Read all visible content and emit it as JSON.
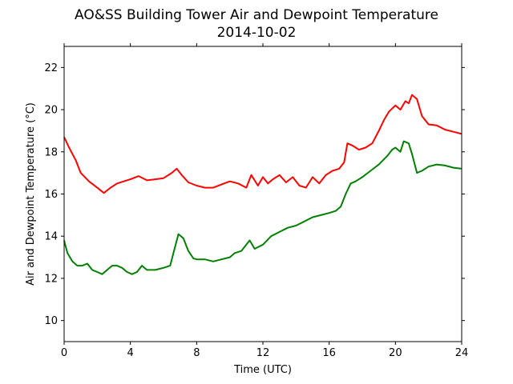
{
  "chart_data": {
    "type": "line",
    "title": "AO&SS Building Tower Air and Dewpoint Temperature",
    "subtitle": "2014-10-02",
    "xlabel": "Time (UTC)",
    "ylabel": "Air and Dewpoint Temperature (°C)",
    "xlim": [
      0,
      24
    ],
    "ylim": [
      9,
      23
    ],
    "xticks": [
      "0",
      "4",
      "8",
      "12",
      "16",
      "20",
      "24"
    ],
    "yticks": [
      "10",
      "12",
      "14",
      "16",
      "18",
      "20",
      "22"
    ],
    "grid": false,
    "legend": "none",
    "series": [
      {
        "color": "#ff0000",
        "x": [
          0,
          0.3,
          0.7,
          1.0,
          1.5,
          2.0,
          2.4,
          2.8,
          3.2,
          3.6,
          4.0,
          4.5,
          5.0,
          5.5,
          6.0,
          6.5,
          6.8,
          7.1,
          7.5,
          8.0,
          8.5,
          9.0,
          9.5,
          10.0,
          10.5,
          11.0,
          11.3,
          11.7,
          12.0,
          12.3,
          12.6,
          13.0,
          13.4,
          13.8,
          14.2,
          14.6,
          15.0,
          15.4,
          15.8,
          16.2,
          16.6,
          16.9,
          17.1,
          17.4,
          17.8,
          18.2,
          18.6,
          19.0,
          19.3,
          19.6,
          20.0,
          20.3,
          20.6,
          20.8,
          21.0,
          21.3,
          21.6,
          22.0,
          22.5,
          23.0,
          23.5,
          24.0
        ],
        "y": [
          18.7,
          18.2,
          17.6,
          17.0,
          16.6,
          16.3,
          16.05,
          16.3,
          16.5,
          16.6,
          16.7,
          16.85,
          16.65,
          16.7,
          16.75,
          17.0,
          17.2,
          16.9,
          16.55,
          16.4,
          16.3,
          16.3,
          16.45,
          16.6,
          16.5,
          16.3,
          16.9,
          16.4,
          16.8,
          16.5,
          16.7,
          16.9,
          16.55,
          16.8,
          16.4,
          16.3,
          16.8,
          16.5,
          16.9,
          17.1,
          17.2,
          17.5,
          18.4,
          18.3,
          18.1,
          18.2,
          18.4,
          19.0,
          19.5,
          19.9,
          20.2,
          20.0,
          20.4,
          20.3,
          20.7,
          20.5,
          19.7,
          19.3,
          19.25,
          19.05,
          18.95,
          18.85
        ]
      },
      {
        "color": "#008000",
        "x": [
          0,
          0.2,
          0.5,
          0.8,
          1.1,
          1.4,
          1.7,
          2.0,
          2.3,
          2.6,
          2.9,
          3.2,
          3.5,
          3.8,
          4.1,
          4.4,
          4.7,
          5.0,
          5.5,
          6.0,
          6.4,
          6.6,
          6.9,
          7.2,
          7.5,
          7.8,
          8.0,
          8.5,
          9.0,
          9.5,
          10.0,
          10.3,
          10.7,
          11.0,
          11.2,
          11.5,
          12.0,
          12.5,
          13.0,
          13.5,
          14.0,
          14.5,
          15.0,
          15.5,
          16.0,
          16.4,
          16.7,
          17.0,
          17.3,
          17.6,
          18.0,
          18.5,
          19.0,
          19.5,
          19.8,
          20.0,
          20.3,
          20.5,
          20.8,
          21.0,
          21.3,
          21.6,
          22.0,
          22.5,
          23.0,
          23.5,
          24.0
        ],
        "y": [
          13.8,
          13.2,
          12.8,
          12.6,
          12.6,
          12.7,
          12.4,
          12.3,
          12.2,
          12.4,
          12.6,
          12.6,
          12.5,
          12.3,
          12.2,
          12.3,
          12.6,
          12.4,
          12.4,
          12.5,
          12.6,
          13.2,
          14.1,
          13.9,
          13.3,
          12.95,
          12.9,
          12.9,
          12.8,
          12.9,
          13.0,
          13.2,
          13.3,
          13.6,
          13.8,
          13.4,
          13.6,
          14.0,
          14.2,
          14.4,
          14.5,
          14.7,
          14.9,
          15.0,
          15.1,
          15.2,
          15.4,
          16.0,
          16.5,
          16.6,
          16.8,
          17.1,
          17.4,
          17.8,
          18.1,
          18.2,
          18.0,
          18.5,
          18.4,
          17.9,
          17.0,
          17.1,
          17.3,
          17.4,
          17.35,
          17.25,
          17.2
        ]
      }
    ]
  }
}
